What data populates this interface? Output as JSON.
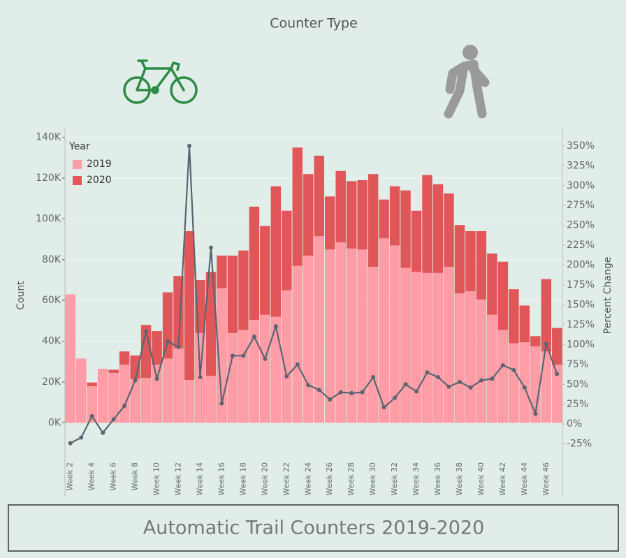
{
  "chart_data": {
    "type": "bar",
    "header": "Counter Type",
    "title": "Automatic Trail Counters 2019-2020",
    "legend_title": "Year",
    "ylabel": "Count",
    "y2label": "Percent Change",
    "categories": [
      "Week 2",
      null,
      "Week 4",
      null,
      "Week 6",
      null,
      "Week 8",
      null,
      "Week 10",
      null,
      "Week 12",
      null,
      "Week 14",
      null,
      "Week 16",
      null,
      "Week 18",
      null,
      "Week 20",
      null,
      "Week 22",
      null,
      "Week 24",
      null,
      "Week 26",
      null,
      "Week 28",
      null,
      "Week 30",
      null,
      "Week 32",
      null,
      "Week 34",
      null,
      "Week 36",
      null,
      "Week 38",
      null,
      "Week 40",
      null,
      "Week 42",
      null,
      "Week 44",
      null,
      "Week 46",
      null
    ],
    "series": [
      {
        "name": "2020",
        "color": "#e15759",
        "values": [
          48000,
          26000,
          19800,
          23500,
          26000,
          35000,
          33000,
          48000,
          45000,
          64000,
          72000,
          94000,
          70000,
          74000,
          82000,
          82000,
          84500,
          106000,
          96500,
          116000,
          104000,
          135000,
          122000,
          131000,
          111000,
          123500,
          118500,
          119000,
          122000,
          109500,
          116000,
          114000,
          104000,
          121500,
          117000,
          112500,
          97000,
          94000,
          94000,
          83000,
          79000,
          65500,
          57500,
          42500,
          70500,
          46500
        ]
      },
      {
        "name": "2019",
        "color": "#ff9da7",
        "values": [
          63000,
          31500,
          18000,
          26500,
          24500,
          28500,
          21500,
          22000,
          28500,
          31500,
          36500,
          21000,
          44000,
          23000,
          66000,
          44000,
          45500,
          50500,
          53000,
          52000,
          65000,
          77000,
          82000,
          91500,
          85000,
          88500,
          85500,
          85000,
          76500,
          90500,
          87000,
          76000,
          74000,
          73500,
          73500,
          76500,
          63500,
          64500,
          60500,
          53000,
          45500,
          39000,
          39500,
          37500,
          35000,
          28500
        ]
      }
    ],
    "percent_change": {
      "color": "#5b6570",
      "axis": "y2",
      "values": [
        -24,
        -17,
        10,
        -11,
        6,
        23,
        55,
        117,
        57,
        104,
        97,
        350,
        59,
        222,
        26,
        86,
        86,
        110,
        82,
        123,
        60,
        75,
        49,
        43,
        31,
        40,
        39,
        40,
        59,
        21,
        33,
        50,
        41,
        65,
        59,
        47,
        53,
        46,
        55,
        57,
        74,
        68,
        46,
        13,
        101,
        63
      ]
    },
    "ylim": [
      -17000,
      144000
    ],
    "yticks": [
      {
        "value": 0,
        "label": "0K"
      },
      {
        "value": 20000,
        "label": "20K"
      },
      {
        "value": 40000,
        "label": "40K"
      },
      {
        "value": 60000,
        "label": "60K"
      },
      {
        "value": 80000,
        "label": "80K"
      },
      {
        "value": 100000,
        "label": "100K"
      },
      {
        "value": 120000,
        "label": "120K"
      },
      {
        "value": 140000,
        "label": "140K"
      }
    ],
    "y2lim": [
      -42,
      371
    ],
    "y2ticks": [
      {
        "value": -25,
        "label": "-25%"
      },
      {
        "value": 0,
        "label": "0%"
      },
      {
        "value": 25,
        "label": "25%"
      },
      {
        "value": 50,
        "label": "50%"
      },
      {
        "value": 75,
        "label": "75%"
      },
      {
        "value": 100,
        "label": "100%"
      },
      {
        "value": 125,
        "label": "125%"
      },
      {
        "value": 150,
        "label": "150%"
      },
      {
        "value": 175,
        "label": "175%"
      },
      {
        "value": 200,
        "label": "200%"
      },
      {
        "value": 225,
        "label": "225%"
      },
      {
        "value": 250,
        "label": "250%"
      },
      {
        "value": 275,
        "label": "275%"
      },
      {
        "value": 300,
        "label": "300%"
      },
      {
        "value": 325,
        "label": "325%"
      },
      {
        "value": 350,
        "label": "350%"
      }
    ],
    "grid": true,
    "legend_position": "upper-left"
  }
}
